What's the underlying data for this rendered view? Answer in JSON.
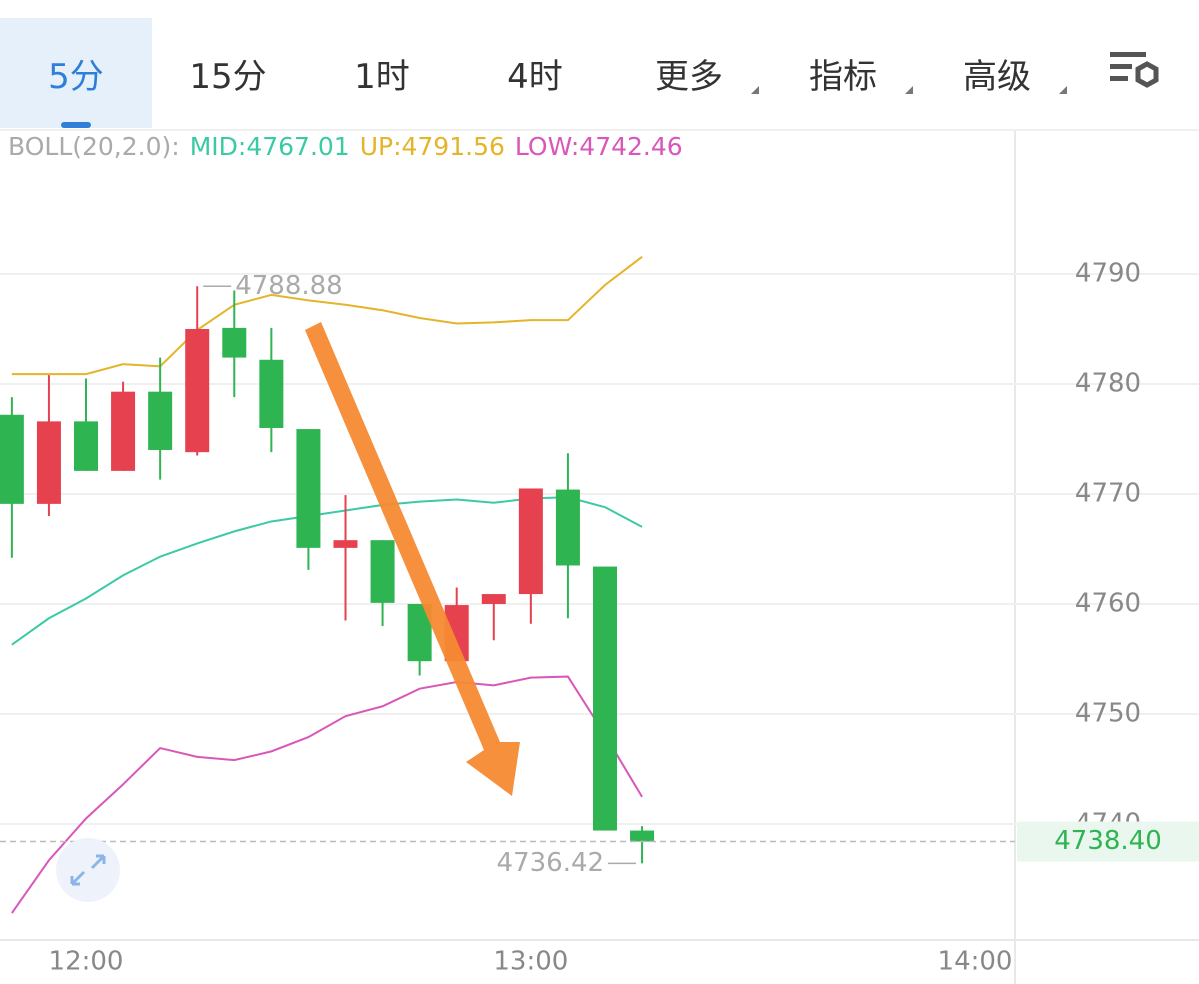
{
  "tabs": [
    "5分",
    "15分",
    "1时",
    "4时",
    "更多",
    "指标",
    "高级"
  ],
  "chart_data": {
    "type": "candlestick",
    "indicator": "BOLL(20,2.0):",
    "x": [
      710,
      715,
      720,
      725,
      730,
      735,
      740,
      745,
      750,
      755,
      760,
      765,
      770,
      775,
      780,
      785,
      790,
      795
    ],
    "xlim": [
      708.4,
      845.3
    ],
    "xticks": [
      {
        "value": 720,
        "label": "12:00"
      },
      {
        "value": 780,
        "label": "13:00"
      },
      {
        "value": 840,
        "label": "14:00"
      }
    ],
    "ylim": [
      4729.45,
      4803.09
    ],
    "yticks": [
      4740,
      4750,
      4760,
      4770,
      4780,
      4790
    ],
    "open": [
      4777.2,
      4769.1,
      4776.6,
      4772.1,
      4779.3,
      4773.8,
      4785.1,
      4782.2,
      4775.9,
      4765.1,
      4765.8,
      4760.0,
      4754.8,
      4760.0,
      4760.9,
      4770.4,
      4763.4,
      4739.4
    ],
    "high": [
      4778.8,
      4780.8,
      4780.5,
      4780.2,
      4782.4,
      4788.88,
      4788.5,
      4785.1,
      4775.9,
      4769.9,
      4765.8,
      4760.0,
      4761.5,
      4760.9,
      4770.5,
      4773.7,
      4763.4,
      4739.8
    ],
    "low": [
      4764.2,
      4768.0,
      4772.1,
      4772.1,
      4771.3,
      4773.5,
      4778.8,
      4773.8,
      4763.1,
      4758.5,
      4758.0,
      4753.5,
      4754.8,
      4756.7,
      4758.2,
      4758.7,
      4739.4,
      4736.42
    ],
    "close": [
      4769.1,
      4776.6,
      4772.1,
      4779.3,
      4774.0,
      4785.0,
      4782.4,
      4776.0,
      4765.1,
      4765.8,
      4760.1,
      4754.8,
      4759.9,
      4760.9,
      4770.5,
      4763.5,
      4739.4,
      4738.4
    ],
    "up_color": "#e5414f",
    "down_color": "#2fb452",
    "bands": [
      {
        "name": "MID:4767.01",
        "color": "#3cc9a5",
        "values": [
          4756.3,
          4758.7,
          4760.5,
          4762.6,
          4764.3,
          4765.5,
          4766.6,
          4767.5,
          4768.0,
          4768.5,
          4769.0,
          4769.3,
          4769.5,
          4769.2,
          4769.6,
          4769.7,
          4768.8,
          4767.01
        ]
      },
      {
        "name": "UP:4791.56",
        "color": "#e4b42a",
        "values": [
          4780.9,
          4780.9,
          4780.9,
          4781.8,
          4781.6,
          4784.9,
          4787.2,
          4788.1,
          4787.6,
          4787.2,
          4786.7,
          4786.0,
          4785.5,
          4785.6,
          4785.8,
          4785.8,
          4789.0,
          4791.56
        ]
      },
      {
        "name": "LOW:4742.46",
        "color": "#d957b9",
        "values": [
          4731.9,
          4736.7,
          4740.5,
          4743.6,
          4746.9,
          4746.1,
          4745.8,
          4746.6,
          4747.9,
          4749.8,
          4750.7,
          4752.3,
          4752.9,
          4752.6,
          4753.3,
          4753.4,
          4748.1,
          4742.46
        ]
      }
    ],
    "last_price": {
      "value": 4738.4,
      "label": "4738.40"
    },
    "grid": true
  }
}
